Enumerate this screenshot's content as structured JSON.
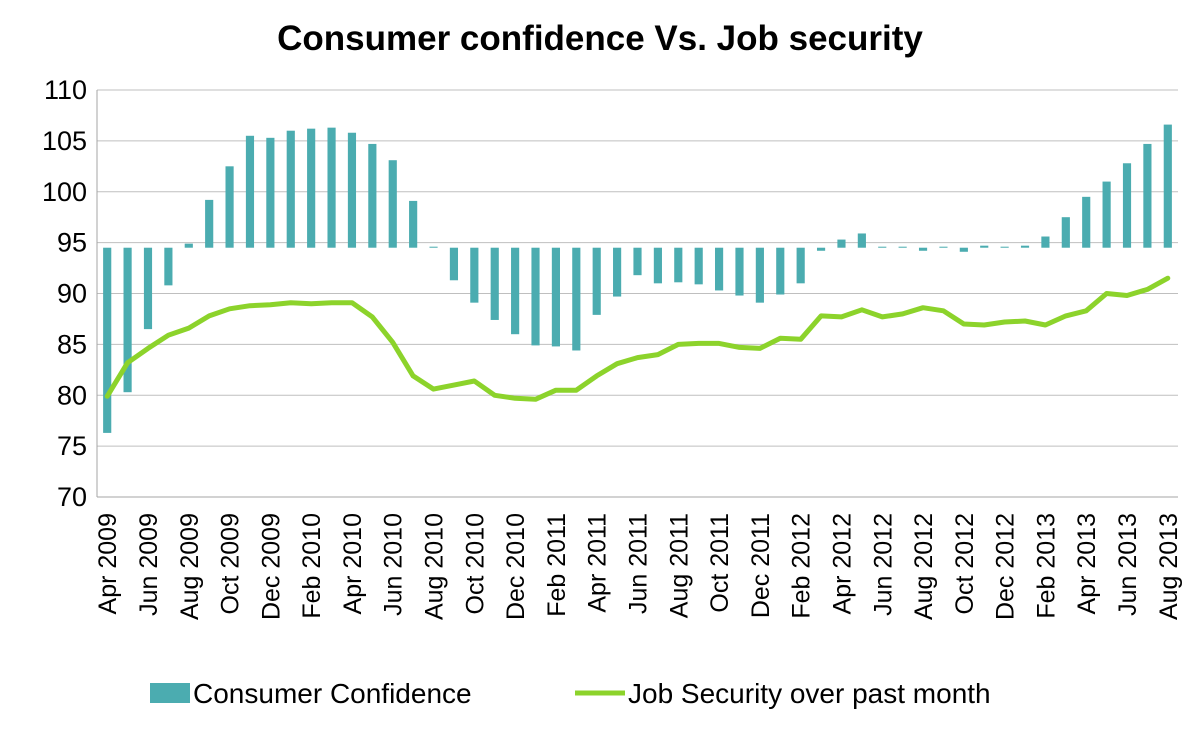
{
  "chart_data": {
    "type": "bar+line",
    "title": "Consumer confidence Vs. Job security",
    "ylim": [
      70,
      110
    ],
    "yticks": [
      70,
      75,
      80,
      85,
      90,
      95,
      100,
      105,
      110
    ],
    "bar_baseline": 94.5,
    "grid": "horizontal",
    "legend_position": "bottom",
    "x": [
      "Apr 2009",
      "May 2009",
      "Jun 2009",
      "Jul 2009",
      "Aug 2009",
      "Sep 2009",
      "Oct 2009",
      "Nov 2009",
      "Dec 2009",
      "Jan 2010",
      "Feb 2010",
      "Mar 2010",
      "Apr 2010",
      "May 2010",
      "Jun 2010",
      "Jul 2010",
      "Aug 2010",
      "Sep 2010",
      "Oct 2010",
      "Nov 2010",
      "Dec 2010",
      "Jan 2011",
      "Feb 2011",
      "Mar 2011",
      "Apr 2011",
      "May 2011",
      "Jun 2011",
      "Jul 2011",
      "Aug 2011",
      "Sep 2011",
      "Oct 2011",
      "Nov 2011",
      "Dec 2011",
      "Jan 2012",
      "Feb 2012",
      "Mar 2012",
      "Apr 2012",
      "May 2012",
      "Jun 2012",
      "Jul 2012",
      "Aug 2012",
      "Sep 2012",
      "Oct 2012",
      "Nov 2012",
      "Dec 2012",
      "Jan 2013",
      "Feb 2013",
      "Mar 2013",
      "Apr 2013",
      "May 2013",
      "Jun 2013",
      "Jul 2013",
      "Aug 2013"
    ],
    "xtick_labels": [
      "Apr 2009",
      "Jun 2009",
      "Aug 2009",
      "Oct 2009",
      "Dec 2009",
      "Feb 2010",
      "Apr 2010",
      "Jun 2010",
      "Aug 2010",
      "Oct 2010",
      "Dec 2010",
      "Feb 2011",
      "Apr 2011",
      "Jun 2011",
      "Aug 2011",
      "Oct 2011",
      "Dec 2011",
      "Feb 2012",
      "Apr 2012",
      "Jun 2012",
      "Aug 2012",
      "Oct 2012",
      "Dec 2012",
      "Feb 2013",
      "Apr 2013",
      "Jun 2013",
      "Aug 2013"
    ],
    "series": [
      {
        "name": "Consumer Confidence",
        "kind": "bar",
        "color": "#4BACB0",
        "values": [
          76.3,
          80.3,
          86.5,
          90.8,
          94.9,
          99.2,
          102.5,
          105.5,
          105.3,
          106.0,
          106.2,
          106.3,
          105.8,
          104.7,
          103.1,
          99.1,
          94.6,
          91.3,
          89.1,
          87.4,
          86.0,
          84.9,
          84.8,
          84.4,
          87.9,
          89.7,
          91.8,
          91.0,
          91.1,
          90.9,
          90.3,
          89.8,
          89.1,
          89.9,
          91.0,
          94.2,
          95.3,
          95.9,
          94.6,
          94.6,
          94.2,
          94.6,
          94.1,
          94.7,
          94.6,
          94.7,
          95.6,
          97.5,
          99.5,
          101.0,
          102.8,
          104.7,
          106.6
        ]
      },
      {
        "name": "Job Security over past month",
        "kind": "line",
        "color": "#8CD32B",
        "values": [
          79.9,
          83.2,
          84.6,
          85.9,
          86.6,
          87.8,
          88.5,
          88.8,
          88.9,
          89.1,
          89.0,
          89.1,
          89.1,
          87.7,
          85.2,
          81.9,
          80.6,
          81.0,
          81.4,
          80.0,
          79.7,
          79.6,
          80.5,
          80.5,
          81.9,
          83.1,
          83.7,
          84.0,
          85.0,
          85.1,
          85.1,
          84.7,
          84.6,
          85.6,
          85.5,
          87.8,
          87.7,
          88.4,
          87.7,
          88.0,
          88.6,
          88.3,
          87.0,
          86.9,
          87.2,
          87.3,
          86.9,
          87.8,
          88.3,
          90.0,
          89.8,
          90.4,
          91.5
        ]
      }
    ]
  }
}
